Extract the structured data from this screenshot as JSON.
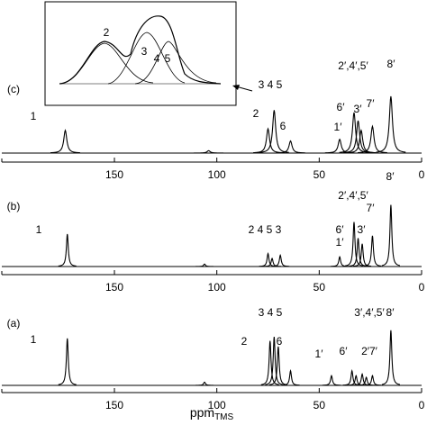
{
  "chart_data": [
    {
      "type": "line",
      "panel_label": "(c)",
      "color": "#000000",
      "x": [
        174,
        104,
        75,
        72,
        64,
        40,
        33,
        31,
        29.5,
        24,
        15
      ],
      "values": [
        28,
        3,
        30,
        53,
        15,
        17,
        50,
        40,
        28,
        33,
        70
      ],
      "ylim": [
        0,
        100
      ],
      "xlim": [
        205,
        0
      ],
      "xticks": [
        150,
        100,
        50,
        0
      ],
      "annotations": [
        "1",
        "2",
        "6",
        "3 4 5",
        "1′",
        "6′",
        "3′",
        "7′",
        "2′,4′,5′",
        "8′"
      ],
      "inset_labels": [
        "2",
        "3",
        "4",
        "5"
      ]
    },
    {
      "type": "line",
      "panel_label": "(b)",
      "color": "#000000",
      "x": [
        173,
        106,
        75,
        73,
        69,
        40,
        33,
        31,
        29,
        24,
        15
      ],
      "values": [
        40,
        3,
        16,
        10,
        14,
        12,
        55,
        35,
        28,
        38,
        76
      ],
      "ylim": [
        0,
        100
      ],
      "xlim": [
        205,
        0
      ],
      "xticks": [
        150,
        100,
        50,
        0
      ],
      "annotations": [
        "1",
        "2 4 5 3",
        "6′",
        "1′",
        "3′",
        "7′",
        "2′,4′,5′",
        "8′"
      ]
    },
    {
      "type": "line",
      "panel_label": "(a)",
      "color": "#000000",
      "x": [
        173,
        106,
        74,
        72,
        70,
        64,
        44,
        34,
        32,
        29,
        27,
        24,
        15
      ],
      "values": [
        58,
        4,
        55,
        60,
        48,
        18,
        12,
        18,
        12,
        14,
        10,
        12,
        68
      ],
      "ylim": [
        0,
        100
      ],
      "xlim": [
        205,
        0
      ],
      "xticks": [
        150,
        100,
        50,
        0
      ],
      "annotations": [
        "1",
        "3 4 5",
        "2",
        "6",
        "1′",
        "6′",
        "2′7′",
        "3′,4′,5′",
        "8′"
      ],
      "xlabel": "ppm",
      "xlabel_sub": "TMS"
    }
  ]
}
